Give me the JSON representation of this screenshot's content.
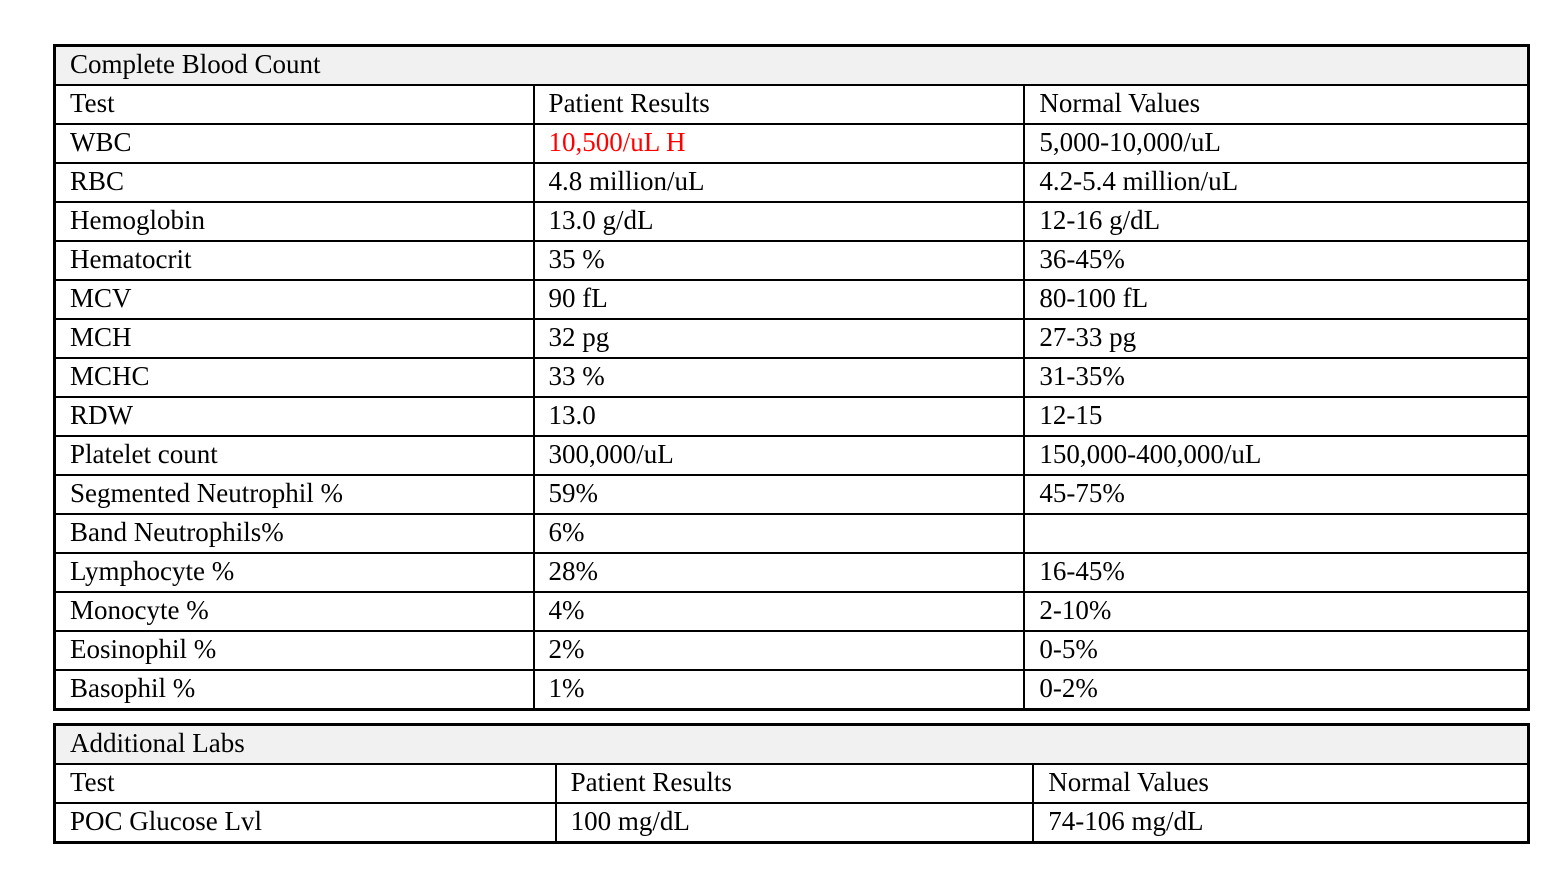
{
  "cbc_table": {
    "title": "Complete Blood Count",
    "columns": [
      "Test",
      "Patient Results",
      "Normal Values"
    ],
    "rows": [
      {
        "test": "WBC",
        "result": "10,500/uL H",
        "normal": "5,000-10,000/uL",
        "flag": "high"
      },
      {
        "test": "RBC",
        "result": "4.8 million/uL",
        "normal": "4.2-5.4 million/uL"
      },
      {
        "test": "Hemoglobin",
        "result": "13.0 g/dL",
        "normal": "12-16 g/dL"
      },
      {
        "test": "Hematocrit",
        "result": "35 %",
        "normal": "36-45%"
      },
      {
        "test": "MCV",
        "result": "90 fL",
        "normal": "80-100 fL"
      },
      {
        "test": "MCH",
        "result": "32 pg",
        "normal": "27-33 pg"
      },
      {
        "test": "MCHC",
        "result": "33 %",
        "normal": "31-35%"
      },
      {
        "test": "RDW",
        "result": "13.0",
        "normal": "12-15"
      },
      {
        "test": "Platelet count",
        "result": "300,000/uL",
        "normal": "150,000-400,000/uL"
      },
      {
        "test": "Segmented Neutrophil %",
        "result": "59%",
        "normal": "45-75%"
      },
      {
        "test": "Band Neutrophils%",
        "result": "6%",
        "normal": ""
      },
      {
        "test": "Lymphocyte %",
        "result": "28%",
        "normal": "16-45%"
      },
      {
        "test": "Monocyte %",
        "result": "4%",
        "normal": "2-10%"
      },
      {
        "test": "Eosinophil %",
        "result": "2%",
        "normal": "0-5%"
      },
      {
        "test": "Basophil %",
        "result": "1%",
        "normal": "0-2%"
      }
    ]
  },
  "additional_table": {
    "title": "Additional Labs",
    "columns": [
      "Test",
      "Patient Results",
      "Normal Values"
    ],
    "rows": [
      {
        "test": "POC Glucose Lvl",
        "result": "100 mg/dL",
        "normal": "74-106 mg/dL"
      }
    ]
  },
  "colors": {
    "abnormal_result": "#ff0000",
    "title_row_bg": "#f1f1f1",
    "border": "#000000"
  }
}
